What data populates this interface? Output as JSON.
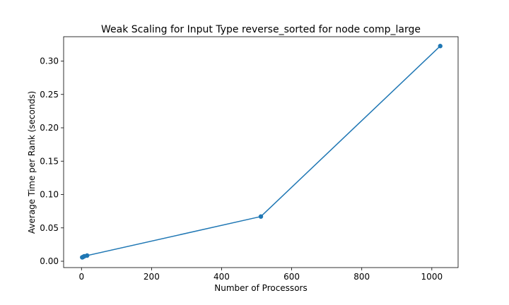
{
  "chart_data": {
    "type": "line",
    "title": "Weak Scaling for Input Type reverse_sorted for node comp_large",
    "xlabel": "Number of Processors",
    "ylabel": "Average Time per Rank (seconds)",
    "xlim": [
      -51,
      1075
    ],
    "ylim": [
      -0.0095,
      0.3365
    ],
    "x_ticks": [
      0,
      200,
      400,
      600,
      800,
      1000
    ],
    "x_tick_labels": [
      "0",
      "200",
      "400",
      "600",
      "800",
      "1000"
    ],
    "y_ticks": [
      0.0,
      0.05,
      0.1,
      0.15,
      0.2,
      0.25,
      0.3
    ],
    "y_tick_labels": [
      "0.00",
      "0.05",
      "0.10",
      "0.15",
      "0.20",
      "0.25",
      "0.30"
    ],
    "grid": false,
    "legend": "none",
    "series": [
      {
        "color": "#1f77b4",
        "marker": "circle",
        "points": [
          {
            "x": 2,
            "y": 0.0058
          },
          {
            "x": 4,
            "y": 0.0063
          },
          {
            "x": 8,
            "y": 0.0075
          },
          {
            "x": 16,
            "y": 0.0085
          },
          {
            "x": 512,
            "y": 0.067
          },
          {
            "x": 1024,
            "y": 0.3225
          }
        ]
      }
    ]
  }
}
